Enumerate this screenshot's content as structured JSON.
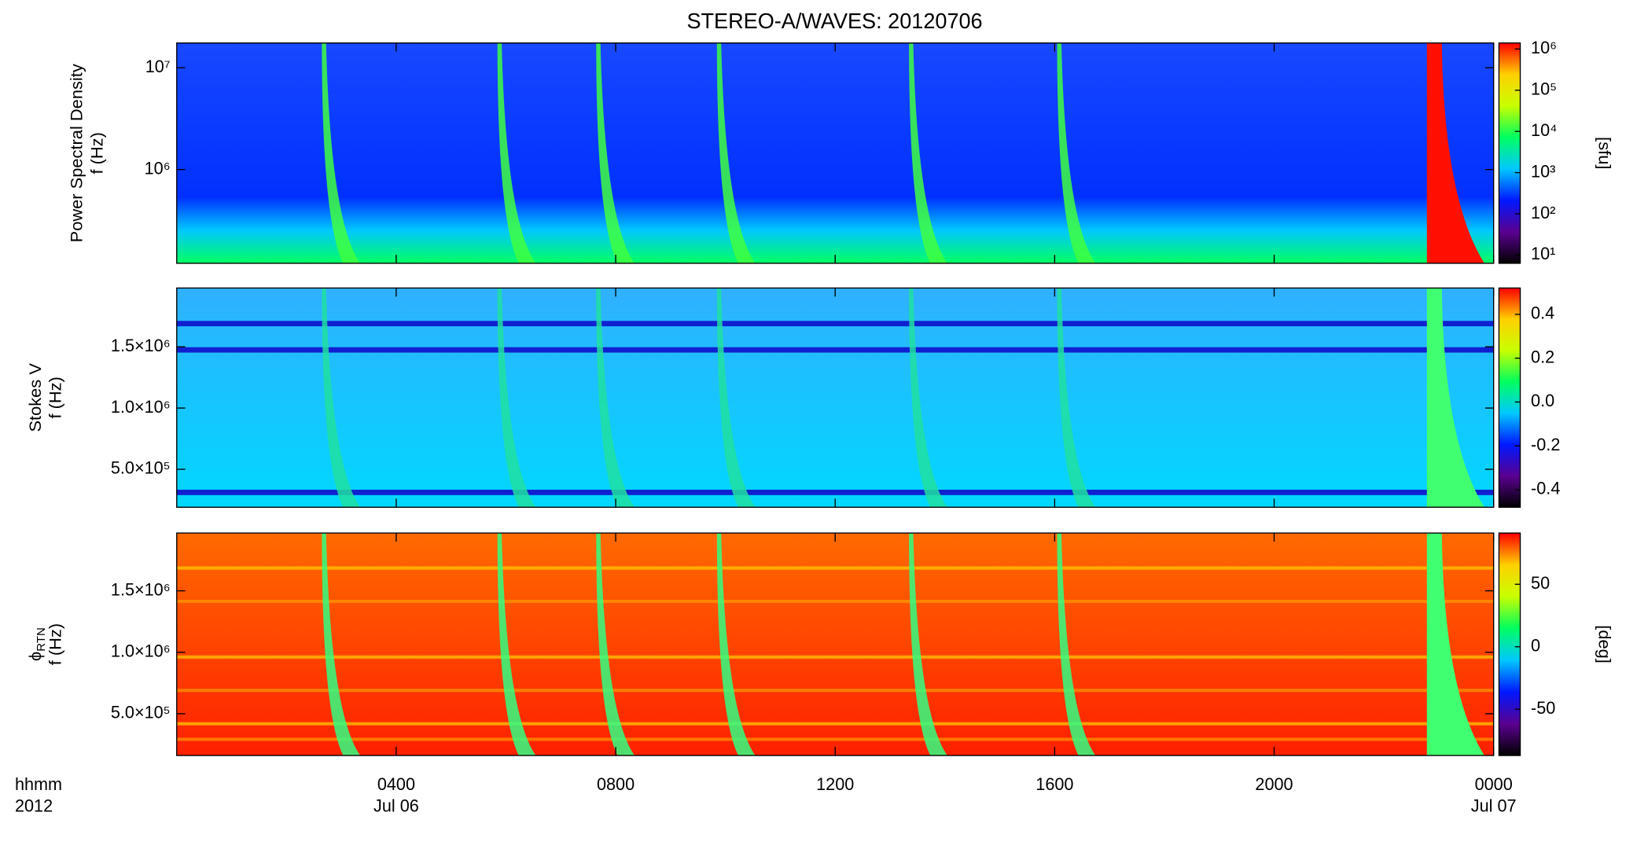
{
  "chart_data": [
    {
      "type": "heatmap",
      "title": "STEREO-A/WAVES: 20120706",
      "ylabel": [
        "Power Spectral Density",
        "f (Hz)"
      ],
      "ylog": true,
      "ylim": [
        120000,
        17500000
      ],
      "yticks": [
        {
          "value": 1000000,
          "label": "10⁶"
        },
        {
          "value": 10000000,
          "label": "10⁷"
        }
      ],
      "colormap": [
        "#000000",
        "#5a0090",
        "#0018ff",
        "#00c8ff",
        "#00ff60",
        "#c8ff00",
        "#ffd000",
        "#ff0000"
      ],
      "colorbar": {
        "label": "[sfu]",
        "log": true,
        "lim": [
          6.3,
          1400000
        ],
        "ticks": [
          {
            "value": 10,
            "label": "10¹"
          },
          {
            "value": 100,
            "label": "10²"
          },
          {
            "value": 1000,
            "label": "10³"
          },
          {
            "value": 10000,
            "label": "10⁴"
          },
          {
            "value": 100000,
            "label": "10⁵"
          },
          {
            "value": 1000000,
            "label": "10⁶"
          }
        ]
      }
    },
    {
      "type": "heatmap",
      "ylabel": [
        "Stokes V",
        "f (Hz)"
      ],
      "ylog": false,
      "ylim": [
        190000,
        1980000
      ],
      "yticks": [
        {
          "value": 500000,
          "label": "5.0×10⁵"
        },
        {
          "value": 1000000,
          "label": "1.0×10⁶"
        },
        {
          "value": 1500000,
          "label": "1.5×10⁶"
        }
      ],
      "colormap": [
        "#000000",
        "#5a0090",
        "#0018ff",
        "#00c8ff",
        "#00ff60",
        "#c8ff00",
        "#ffd000",
        "#ff0000"
      ],
      "colorbar": {
        "log": false,
        "lim": [
          -0.48,
          0.52
        ],
        "ticks": [
          {
            "value": -0.4,
            "label": "-0.4"
          },
          {
            "value": -0.2,
            "label": "-0.2"
          },
          {
            "value": 0,
            "label": "0.0"
          },
          {
            "value": 0.2,
            "label": "0.2"
          },
          {
            "value": 0.4,
            "label": "0.4"
          }
        ]
      }
    },
    {
      "type": "heatmap",
      "ylabel": [
        "ϕ",
        "f (Hz)"
      ],
      "ylabel_subscript": "RTN",
      "ylog": false,
      "ylim": [
        160000,
        1970000
      ],
      "yticks": [
        {
          "value": 500000,
          "label": "5.0×10⁵"
        },
        {
          "value": 1000000,
          "label": "1.0×10⁶"
        },
        {
          "value": 1500000,
          "label": "1.5×10⁶"
        }
      ],
      "colormap": [
        "#000000",
        "#5a0090",
        "#0018ff",
        "#00c8ff",
        "#00ff60",
        "#c8ff00",
        "#ffd000",
        "#ff0000"
      ],
      "colorbar": {
        "label": "[deg]",
        "log": false,
        "lim": [
          -87,
          91
        ],
        "ticks": [
          -50,
          0,
          50
        ]
      },
      "xlim": [
        0,
        24
      ],
      "xticks": [
        {
          "value": 4,
          "label": "0400"
        },
        {
          "value": 8,
          "label": "0800"
        },
        {
          "value": 12,
          "label": "1200"
        },
        {
          "value": 16,
          "label": "1600"
        },
        {
          "value": 20,
          "label": "2000"
        },
        {
          "value": 24,
          "label": "0000"
        }
      ],
      "xdates": [
        {
          "value": 4,
          "label": "Jul 06"
        },
        {
          "value": 24,
          "label": "Jul 07"
        }
      ],
      "xunits": [
        "hhmm",
        "2012"
      ]
    }
  ]
}
